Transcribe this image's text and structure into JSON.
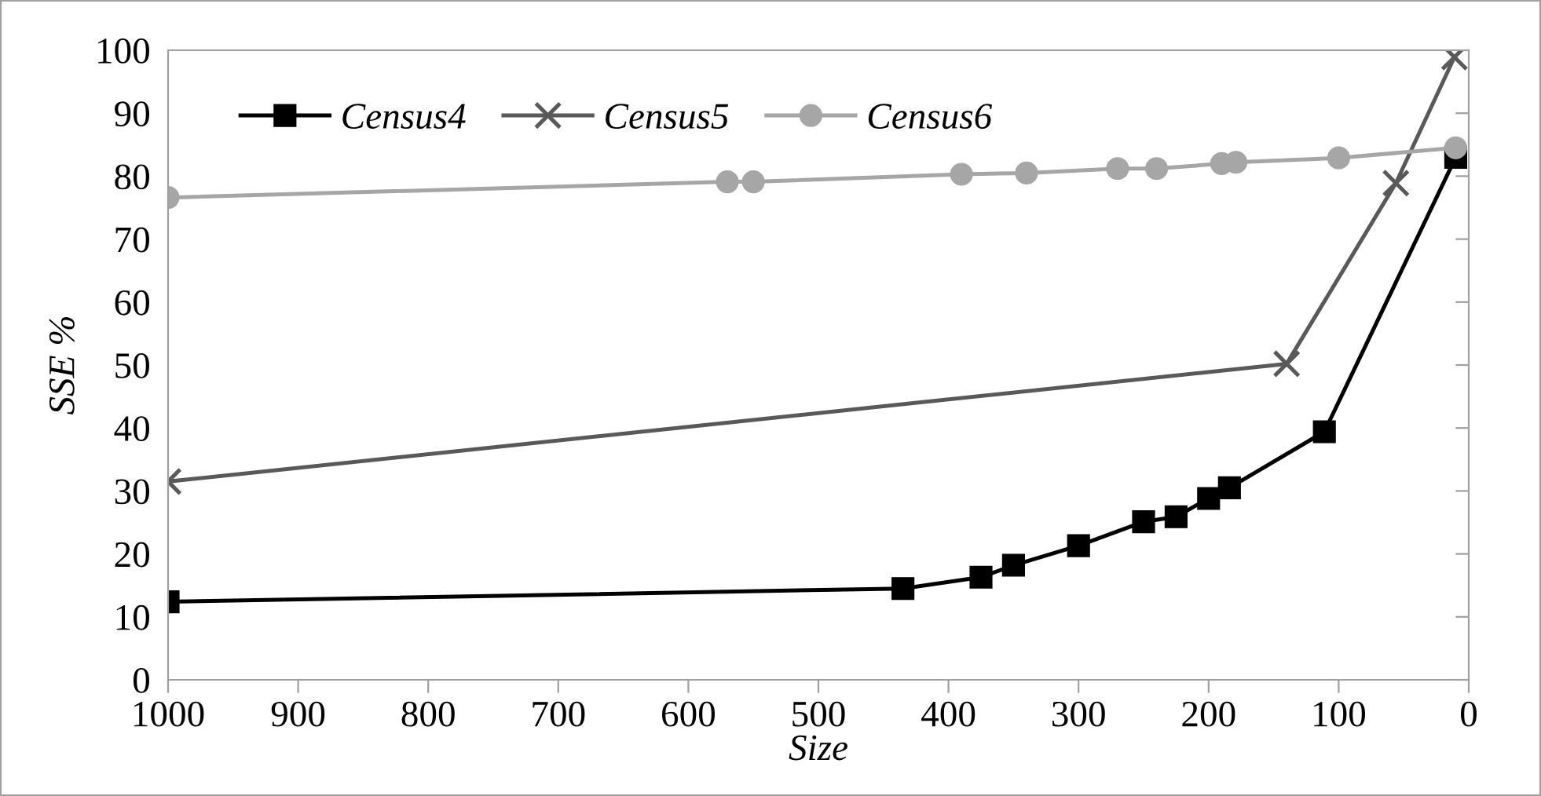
{
  "chart_data": {
    "type": "line",
    "xlabel": "Size",
    "ylabel": "SSE %",
    "xlim": [
      1000,
      0
    ],
    "ylim": [
      0,
      100
    ],
    "xticks": [
      1000,
      900,
      800,
      700,
      600,
      500,
      400,
      300,
      200,
      100,
      0
    ],
    "yticks": [
      0,
      10,
      20,
      30,
      40,
      50,
      60,
      70,
      80,
      90,
      100
    ],
    "grid": false,
    "legend": "top left",
    "line_style": "solid",
    "series": [
      {
        "name": "Census4",
        "color": "#000000",
        "marker": "square",
        "x": [
          1000,
          435,
          375,
          350,
          300,
          250,
          225,
          200,
          184,
          111,
          10
        ],
        "values": [
          12.4,
          14.5,
          16.3,
          18.2,
          21.3,
          25.1,
          25.9,
          28.8,
          30.5,
          39.4,
          83
        ]
      },
      {
        "name": "Census5",
        "color": "#595959",
        "marker": "cross",
        "x": [
          1000,
          140,
          56,
          11
        ],
        "values": [
          31.5,
          50.2,
          78.9,
          98.9
        ]
      },
      {
        "name": "Census6",
        "color": "#a6a6a6",
        "marker": "circle",
        "x": [
          1000,
          570,
          550,
          390,
          340,
          270,
          240,
          190,
          179,
          100,
          10
        ],
        "values": [
          76.6,
          79.1,
          79.1,
          80.3,
          80.5,
          81.2,
          81.2,
          82,
          82.2,
          82.9,
          84.5
        ]
      }
    ]
  }
}
